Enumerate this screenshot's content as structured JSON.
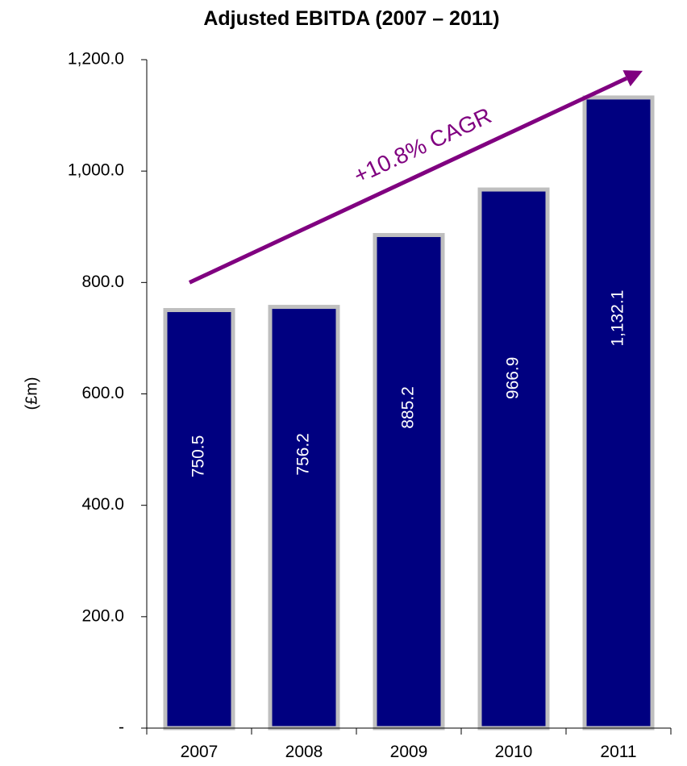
{
  "chart_data": {
    "type": "bar",
    "title": "Adjusted EBITDA (2007 – 2011)",
    "xlabel": "",
    "ylabel": "(£m)",
    "categories": [
      "2007",
      "2008",
      "2009",
      "2010",
      "2011"
    ],
    "values": [
      750.5,
      756.2,
      885.2,
      966.9,
      1132.1
    ],
    "data_labels": [
      "750.5",
      "756.2",
      "885.2",
      "966.9",
      "1,132.1"
    ],
    "ylim": [
      0,
      1200
    ],
    "yticks": [
      0,
      200,
      400,
      600,
      800,
      1000,
      1200
    ],
    "ytick_labels": [
      "-",
      "200.0",
      "400.0",
      "600.0",
      "800.0",
      "1,000.0",
      "1,200.0"
    ],
    "grid": false,
    "legend": "none",
    "annotation": {
      "text": "+10.8% CAGR",
      "arrow_from": {
        "category": "2007",
        "value": 800
      },
      "arrow_to": {
        "category": "2011",
        "value": 1180
      }
    },
    "colors": {
      "bar_fill": "#000080",
      "bar_border": "#bfbfbf",
      "annotation": "#800080",
      "axis": "#000000",
      "data_label": "#ffffff"
    }
  }
}
